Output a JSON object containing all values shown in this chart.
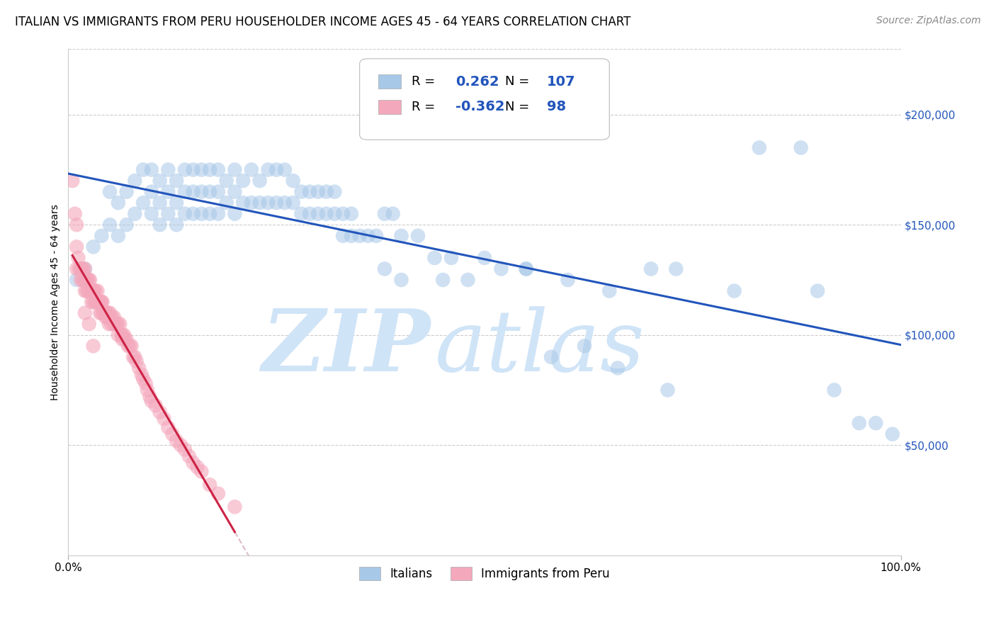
{
  "title": "ITALIAN VS IMMIGRANTS FROM PERU HOUSEHOLDER INCOME AGES 45 - 64 YEARS CORRELATION CHART",
  "source": "Source: ZipAtlas.com",
  "ylabel": "Householder Income Ages 45 - 64 years",
  "ytick_labels": [
    "$50,000",
    "$100,000",
    "$150,000",
    "$200,000"
  ],
  "ytick_values": [
    50000,
    100000,
    150000,
    200000
  ],
  "xlim": [
    0.0,
    1.0
  ],
  "ylim": [
    0,
    230000
  ],
  "legend_blue_R": "0.262",
  "legend_blue_N": "107",
  "legend_pink_R": "-0.362",
  "legend_pink_N": "98",
  "blue_color": "#a8c8e8",
  "pink_color": "#f4a8bc",
  "blue_line_color": "#2255bb",
  "pink_line_color": "#cc2244",
  "dashed_line_color": "#ddbbcc",
  "watermark_color": "#d0e4f7",
  "title_fontsize": 12,
  "source_fontsize": 10,
  "legend_fontsize": 14,
  "axis_fontsize": 11,
  "blue_scatter_x": [
    0.01,
    0.02,
    0.03,
    0.04,
    0.05,
    0.05,
    0.06,
    0.06,
    0.07,
    0.07,
    0.08,
    0.08,
    0.09,
    0.09,
    0.1,
    0.1,
    0.1,
    0.11,
    0.11,
    0.11,
    0.12,
    0.12,
    0.12,
    0.13,
    0.13,
    0.13,
    0.14,
    0.14,
    0.14,
    0.15,
    0.15,
    0.15,
    0.16,
    0.16,
    0.16,
    0.17,
    0.17,
    0.17,
    0.18,
    0.18,
    0.18,
    0.19,
    0.19,
    0.2,
    0.2,
    0.2,
    0.21,
    0.21,
    0.22,
    0.22,
    0.23,
    0.23,
    0.24,
    0.24,
    0.25,
    0.25,
    0.26,
    0.26,
    0.27,
    0.27,
    0.28,
    0.28,
    0.29,
    0.29,
    0.3,
    0.3,
    0.31,
    0.31,
    0.32,
    0.32,
    0.33,
    0.33,
    0.34,
    0.34,
    0.35,
    0.36,
    0.37,
    0.38,
    0.39,
    0.4,
    0.42,
    0.44,
    0.46,
    0.5,
    0.55,
    0.6,
    0.65,
    0.7,
    0.73,
    0.8,
    0.83,
    0.88,
    0.9,
    0.92,
    0.95,
    0.97,
    0.99,
    0.38,
    0.4,
    0.45,
    0.48,
    0.52,
    0.55,
    0.58,
    0.62,
    0.66,
    0.72
  ],
  "blue_scatter_y": [
    125000,
    130000,
    140000,
    145000,
    150000,
    165000,
    145000,
    160000,
    150000,
    165000,
    155000,
    170000,
    160000,
    175000,
    155000,
    165000,
    175000,
    150000,
    160000,
    170000,
    155000,
    165000,
    175000,
    150000,
    160000,
    170000,
    155000,
    165000,
    175000,
    155000,
    165000,
    175000,
    155000,
    165000,
    175000,
    155000,
    165000,
    175000,
    155000,
    165000,
    175000,
    160000,
    170000,
    155000,
    165000,
    175000,
    160000,
    170000,
    160000,
    175000,
    160000,
    170000,
    160000,
    175000,
    160000,
    175000,
    160000,
    175000,
    160000,
    170000,
    155000,
    165000,
    155000,
    165000,
    155000,
    165000,
    155000,
    165000,
    155000,
    165000,
    145000,
    155000,
    145000,
    155000,
    145000,
    145000,
    145000,
    155000,
    155000,
    145000,
    145000,
    135000,
    135000,
    135000,
    130000,
    125000,
    120000,
    130000,
    130000,
    120000,
    185000,
    185000,
    120000,
    75000,
    60000,
    60000,
    55000,
    130000,
    125000,
    125000,
    125000,
    130000,
    130000,
    90000,
    95000,
    85000,
    75000
  ],
  "pink_scatter_x": [
    0.005,
    0.008,
    0.01,
    0.01,
    0.012,
    0.013,
    0.015,
    0.015,
    0.016,
    0.017,
    0.018,
    0.019,
    0.02,
    0.02,
    0.021,
    0.022,
    0.022,
    0.023,
    0.024,
    0.025,
    0.025,
    0.026,
    0.027,
    0.028,
    0.029,
    0.03,
    0.03,
    0.031,
    0.032,
    0.033,
    0.034,
    0.035,
    0.035,
    0.036,
    0.037,
    0.038,
    0.039,
    0.04,
    0.04,
    0.041,
    0.042,
    0.043,
    0.044,
    0.045,
    0.045,
    0.046,
    0.047,
    0.048,
    0.049,
    0.05,
    0.05,
    0.052,
    0.053,
    0.055,
    0.055,
    0.057,
    0.058,
    0.06,
    0.06,
    0.062,
    0.064,
    0.065,
    0.065,
    0.067,
    0.068,
    0.07,
    0.072,
    0.074,
    0.076,
    0.078,
    0.08,
    0.082,
    0.085,
    0.088,
    0.09,
    0.093,
    0.095,
    0.098,
    0.1,
    0.105,
    0.11,
    0.115,
    0.12,
    0.125,
    0.13,
    0.135,
    0.14,
    0.145,
    0.15,
    0.155,
    0.16,
    0.17,
    0.18,
    0.2,
    0.01,
    0.02,
    0.025,
    0.03
  ],
  "pink_scatter_y": [
    170000,
    155000,
    140000,
    150000,
    135000,
    130000,
    130000,
    125000,
    130000,
    125000,
    130000,
    125000,
    130000,
    120000,
    125000,
    125000,
    120000,
    125000,
    120000,
    125000,
    120000,
    125000,
    120000,
    115000,
    120000,
    120000,
    115000,
    120000,
    115000,
    120000,
    115000,
    120000,
    115000,
    115000,
    115000,
    110000,
    115000,
    115000,
    110000,
    115000,
    110000,
    110000,
    110000,
    110000,
    108000,
    110000,
    108000,
    110000,
    105000,
    110000,
    108000,
    105000,
    108000,
    108000,
    105000,
    105000,
    105000,
    105000,
    100000,
    105000,
    100000,
    100000,
    98000,
    100000,
    98000,
    98000,
    95000,
    95000,
    95000,
    90000,
    90000,
    88000,
    85000,
    82000,
    80000,
    78000,
    75000,
    72000,
    70000,
    68000,
    65000,
    62000,
    58000,
    55000,
    52000,
    50000,
    48000,
    45000,
    42000,
    40000,
    38000,
    32000,
    28000,
    22000,
    130000,
    110000,
    105000,
    95000
  ]
}
